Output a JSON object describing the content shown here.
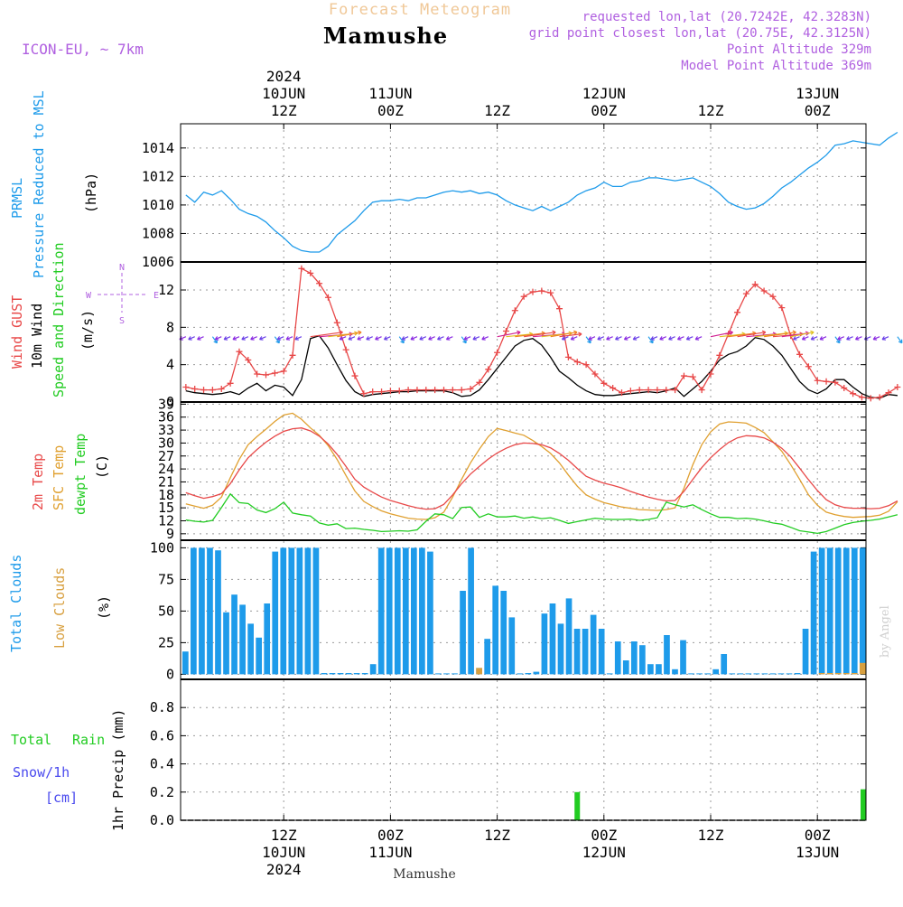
{
  "header": {
    "product": "Forecast Meteogram",
    "location": "Mamushe",
    "model": "ICON-EU, ~ 7km",
    "requested": "requested lon,lat (20.7242E, 42.3283N)",
    "grid_point": "grid point closest lon,lat (20.75E, 42.3125N)",
    "point_altitude": "Point Altitude 329m",
    "model_altitude": "Model Point Altitude 369m"
  },
  "footer": {
    "location": "Mamushe",
    "credit": "by Angel"
  },
  "time_axis": {
    "top": [
      {
        "hour": 12,
        "lines": [
          "2024",
          "10JUN",
          "12Z"
        ]
      },
      {
        "hour": 24,
        "lines": [
          "11JUN",
          "00Z"
        ]
      },
      {
        "hour": 36,
        "lines": [
          "12Z"
        ]
      },
      {
        "hour": 48,
        "lines": [
          "12JUN",
          "00Z"
        ]
      },
      {
        "hour": 60,
        "lines": [
          "12Z"
        ]
      },
      {
        "hour": 72,
        "lines": [
          "13JUN",
          "00Z"
        ]
      }
    ],
    "bottom": [
      {
        "hour": 12,
        "lines": [
          "12Z",
          "10JUN",
          "2024"
        ]
      },
      {
        "hour": 24,
        "lines": [
          "00Z",
          "11JUN"
        ]
      },
      {
        "hour": 36,
        "lines": [
          "12Z"
        ]
      },
      {
        "hour": 48,
        "lines": [
          "00Z",
          "12JUN"
        ]
      },
      {
        "hour": 60,
        "lines": [
          "12Z"
        ]
      },
      {
        "hour": 72,
        "lines": [
          "00Z",
          "13JUN"
        ]
      }
    ]
  },
  "labels": {
    "pressure": [
      "PRMSL",
      "Pressure Reduced to MSL",
      "(hPa)"
    ],
    "wind": [
      "Wind GUST",
      "10m Wind",
      "Speed and Direction",
      "(m/s)"
    ],
    "compass": [
      "N",
      "W",
      "E",
      "S"
    ],
    "temp": [
      "2m Temp",
      "SFC Temp",
      "dewpt Temp",
      "(C)"
    ],
    "clouds": [
      "Total Clouds",
      "Low Clouds",
      "(%)"
    ],
    "precip": [
      "Total",
      "Rain",
      "Snow/1h",
      "[cm]",
      "1hr Precip (mm)"
    ]
  },
  "colors": {
    "pressure": "#1e9bea",
    "gust": "#e84848",
    "wind": "#000000",
    "t2m": "#e84848",
    "tsfc": "#e0a030",
    "dew": "#22cc22",
    "clouds": "#1e9bea",
    "low": "#d8a040",
    "rain": "#22cc22",
    "snow": "#4a4aee",
    "label_purple": "#b060e0",
    "title_orange": "#f0c898"
  },
  "chart_data": [
    {
      "type": "line",
      "title": "PRMSL Pressure Reduced to MSL",
      "ylabel": "(hPa)",
      "ylim": [
        1006,
        1015.7
      ],
      "yticks": [
        1006,
        1008,
        1010,
        1012,
        1014
      ],
      "start_hour": 1,
      "step_hours": 1,
      "series": [
        {
          "name": "PRMSL",
          "values": [
            1010.7,
            1010.2,
            1010.9,
            1010.7,
            1011.0,
            1010.4,
            1009.7,
            1009.4,
            1009.2,
            1008.8,
            1008.2,
            1007.7,
            1007.1,
            1006.8,
            1006.7,
            1006.7,
            1007.1,
            1007.9,
            1008.4,
            1008.9,
            1009.6,
            1010.2,
            1010.3,
            1010.3,
            1010.4,
            1010.3,
            1010.5,
            1010.5,
            1010.7,
            1010.9,
            1011.0,
            1010.9,
            1011.0,
            1010.8,
            1010.9,
            1010.7,
            1010.3,
            1010.0,
            1009.8,
            1009.6,
            1009.9,
            1009.6,
            1009.9,
            1010.2,
            1010.7,
            1011.0,
            1011.2,
            1011.6,
            1011.3,
            1011.3,
            1011.6,
            1011.7,
            1011.9,
            1011.9,
            1011.8,
            1011.7,
            1011.8,
            1011.9,
            1011.6,
            1011.3,
            1010.8,
            1010.2,
            1009.9,
            1009.7,
            1009.8,
            1010.1,
            1010.6,
            1011.2,
            1011.6,
            1012.1,
            1012.6,
            1013.0,
            1013.5,
            1014.2,
            1014.3,
            1014.5,
            1014.4,
            1014.3,
            1014.2,
            1014.7,
            1015.1
          ]
        }
      ]
    },
    {
      "type": "line",
      "title": "Wind GUST / 10m Wind Speed and Direction",
      "ylabel": "(m/s)",
      "ylim": [
        0,
        15
      ],
      "yticks": [
        0,
        4,
        8,
        12
      ],
      "start_hour": 1,
      "step_hours": 1,
      "series": [
        {
          "name": "Wind GUST",
          "values": [
            1.6,
            1.4,
            1.3,
            1.3,
            1.4,
            2.0,
            5.4,
            4.5,
            3.0,
            2.9,
            3.1,
            3.3,
            5.0,
            14.3,
            13.8,
            12.7,
            11.2,
            8.5,
            5.6,
            2.8,
            0.9,
            1.1,
            1.1,
            1.2,
            1.2,
            1.3,
            1.3,
            1.3,
            1.3,
            1.3,
            1.3,
            1.3,
            1.4,
            2.1,
            3.5,
            5.3,
            7.6,
            9.8,
            11.3,
            11.8,
            11.9,
            11.7,
            10.0,
            4.8,
            4.3,
            4.0,
            3.0,
            2.0,
            1.5,
            1.0,
            1.2,
            1.3,
            1.3,
            1.3,
            1.3,
            1.3,
            2.8,
            2.7,
            1.3,
            3.0,
            5.0,
            7.3,
            9.6,
            11.6,
            12.6,
            11.9,
            11.3,
            10.1,
            7.1,
            5.1,
            3.8,
            2.3,
            2.2,
            2.1,
            1.5,
            0.9,
            0.5,
            0.4,
            0.5,
            1.0,
            1.6
          ]
        },
        {
          "name": "10m Wind",
          "values": [
            1.2,
            1.0,
            0.9,
            0.8,
            0.9,
            1.1,
            0.8,
            1.5,
            2.0,
            1.2,
            1.8,
            1.6,
            0.7,
            2.4,
            6.8,
            7.1,
            5.8,
            4.0,
            2.3,
            1.1,
            0.6,
            0.8,
            0.9,
            1.0,
            1.1,
            1.1,
            1.2,
            1.2,
            1.2,
            1.2,
            1.0,
            0.6,
            0.7,
            1.3,
            2.4,
            3.6,
            4.8,
            6.0,
            6.6,
            6.8,
            6.1,
            4.8,
            3.3,
            2.6,
            1.8,
            1.2,
            0.8,
            0.7,
            0.7,
            0.8,
            0.9,
            1.0,
            1.1,
            1.0,
            1.2,
            1.5,
            0.6,
            1.4,
            2.2,
            3.3,
            4.5,
            5.1,
            5.4,
            6.0,
            6.9,
            6.7,
            6.0,
            5.0,
            3.6,
            2.2,
            1.3,
            0.9,
            1.4,
            2.4,
            2.4,
            1.6,
            0.9,
            0.5,
            0.4,
            0.8,
            0.7
          ]
        },
        {
          "name": "Wind direction arrows",
          "values": []
        }
      ]
    },
    {
      "type": "line",
      "title": "2m Temp / SFC Temp / dewpt Temp",
      "ylabel": "(C)",
      "ylim": [
        7.5,
        39.5
      ],
      "yticks": [
        9,
        12,
        15,
        18,
        21,
        24,
        27,
        30,
        33,
        36,
        39
      ],
      "start_hour": 1,
      "step_hours": 1,
      "series": [
        {
          "name": "2m Temp",
          "values": [
            18.5,
            17.8,
            17.2,
            17.6,
            18.3,
            20.6,
            23.8,
            26.6,
            28.5,
            30.2,
            31.6,
            32.7,
            33.3,
            33.5,
            32.8,
            31.6,
            29.8,
            27.4,
            24.6,
            21.6,
            19.8,
            18.6,
            17.5,
            16.7,
            16.1,
            15.5,
            15.0,
            14.7,
            14.8,
            15.8,
            18.0,
            20.6,
            22.8,
            24.6,
            26.3,
            27.7,
            28.8,
            29.6,
            30.0,
            29.9,
            29.6,
            28.9,
            27.6,
            26.0,
            24.1,
            22.3,
            21.4,
            20.7,
            20.2,
            19.6,
            18.8,
            18.1,
            17.5,
            17.0,
            16.6,
            16.7,
            18.8,
            21.6,
            24.3,
            26.6,
            28.5,
            30.1,
            31.2,
            31.7,
            31.6,
            31.2,
            30.2,
            28.8,
            26.8,
            24.2,
            21.5,
            19.0,
            16.9,
            15.7,
            15.1,
            14.9,
            14.9,
            14.8,
            14.9,
            15.5,
            16.6
          ]
        },
        {
          "name": "SFC Temp",
          "values": [
            15.9,
            15.4,
            14.9,
            15.6,
            17.5,
            22.0,
            26.2,
            29.6,
            31.5,
            33.2,
            35.0,
            36.5,
            36.9,
            35.5,
            33.5,
            31.8,
            29.4,
            26.2,
            22.5,
            18.9,
            16.5,
            15.3,
            14.3,
            13.6,
            13.1,
            12.6,
            12.4,
            12.3,
            12.7,
            14.0,
            17.5,
            21.6,
            25.4,
            28.6,
            31.5,
            33.4,
            32.9,
            32.3,
            31.8,
            30.6,
            29.2,
            27.6,
            25.4,
            22.6,
            20.0,
            18.0,
            17.0,
            16.2,
            15.7,
            15.2,
            14.9,
            14.6,
            14.5,
            14.4,
            14.6,
            15.0,
            19.5,
            25.0,
            29.6,
            32.6,
            34.4,
            34.9,
            34.8,
            34.6,
            33.6,
            32.4,
            30.3,
            28.1,
            25.0,
            21.6,
            18.0,
            15.6,
            14.0,
            13.4,
            13.0,
            12.8,
            12.9,
            13.0,
            13.3,
            14.2,
            16.4
          ]
        },
        {
          "name": "dewpt Temp",
          "values": [
            12.2,
            11.9,
            11.7,
            12.1,
            15.1,
            18.2,
            16.2,
            16.0,
            14.5,
            13.9,
            14.8,
            16.3,
            13.8,
            13.4,
            13.1,
            11.5,
            11.0,
            11.3,
            10.2,
            10.3,
            10.0,
            9.8,
            9.5,
            9.6,
            9.7,
            9.6,
            9.9,
            11.9,
            13.6,
            13.4,
            12.5,
            15.1,
            15.2,
            12.8,
            13.6,
            12.9,
            12.9,
            13.1,
            12.6,
            12.9,
            12.5,
            12.7,
            12.1,
            11.4,
            11.8,
            12.2,
            12.6,
            12.4,
            12.3,
            12.3,
            12.4,
            12.1,
            12.3,
            12.7,
            16.3,
            15.7,
            15.2,
            15.7,
            14.6,
            13.6,
            12.8,
            12.8,
            12.5,
            12.6,
            12.4,
            12.0,
            11.5,
            11.2,
            10.5,
            9.7,
            9.4,
            9.1,
            9.5,
            10.3,
            11.1,
            11.6,
            11.9,
            12.1,
            12.4,
            12.9,
            13.4
          ]
        }
      ]
    },
    {
      "type": "bar",
      "title": "Total Clouds / Low Clouds",
      "ylabel": "(%)",
      "ylim": [
        -4,
        106
      ],
      "yticks": [
        0,
        25,
        50,
        75,
        100
      ],
      "start_hour": 1,
      "step_hours": 1,
      "series": [
        {
          "name": "Total Clouds",
          "values": [
            18,
            100,
            100,
            100,
            98,
            49,
            63,
            55,
            40,
            29,
            56,
            97,
            100,
            100,
            100,
            100,
            100,
            1,
            1,
            1,
            1,
            1,
            1,
            8,
            100,
            100,
            100,
            100,
            100,
            100,
            97,
            0,
            0,
            0,
            66,
            100,
            5,
            28,
            70,
            66,
            45,
            0,
            1,
            2,
            48,
            56,
            40,
            60,
            36,
            36,
            47,
            36,
            0,
            26,
            11,
            26,
            23,
            8,
            8,
            31,
            4,
            27,
            0,
            0,
            0,
            4,
            16,
            0,
            0,
            0,
            0,
            0,
            0,
            0,
            0,
            1,
            36,
            97,
            100,
            100,
            100,
            100,
            100,
            100
          ]
        },
        {
          "name": "Low Clouds",
          "values": [
            0,
            0,
            0,
            0,
            0,
            0,
            0,
            0,
            0,
            0,
            0,
            0,
            0,
            0,
            0,
            0,
            0,
            0,
            0,
            0,
            0,
            0,
            0,
            0,
            0,
            0,
            0,
            0,
            0,
            0,
            0,
            0,
            0,
            0,
            0,
            0,
            5,
            0,
            0,
            0,
            0,
            0,
            0,
            0,
            0,
            0,
            0,
            0,
            0,
            0,
            0,
            0,
            0,
            0,
            0,
            0,
            0,
            0,
            0,
            0,
            0,
            0,
            0,
            0,
            0,
            0,
            0,
            0,
            0,
            0,
            0,
            0,
            0,
            0,
            0,
            0,
            0,
            0,
            1,
            1,
            1,
            1,
            1,
            9
          ]
        }
      ]
    },
    {
      "type": "bar",
      "title": "Total Rain Snow/1h [cm]",
      "ylabel": "1hr Precip (mm)",
      "ylim": [
        0,
        1.0
      ],
      "yticks": [
        0,
        0.2,
        0.4,
        0.6,
        0.8
      ],
      "points": [
        {
          "hour": 45,
          "total": 0.2,
          "snow": 0
        },
        {
          "hour": 82,
          "total": 0.22,
          "snow": 0
        }
      ]
    }
  ]
}
